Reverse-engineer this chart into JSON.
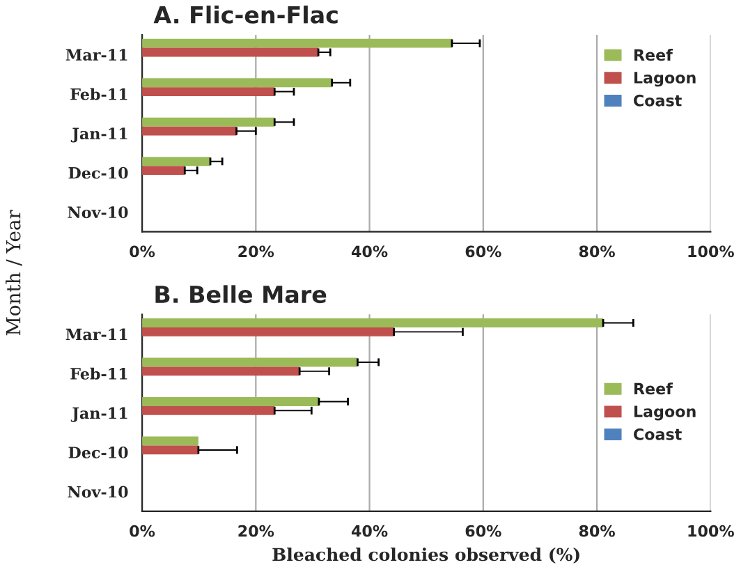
{
  "chart_data": [
    {
      "type": "bar",
      "orientation": "horizontal",
      "title": "A. Flic-en-Flac",
      "ylabel": "Month / Year",
      "categories": [
        "Mar-11",
        "Feb-11",
        "Jan-11",
        "Dec-10",
        "Nov-10"
      ],
      "series": [
        {
          "name": "Reef",
          "color": "#9bbb59",
          "values": [
            54.5,
            33.4,
            23.3,
            12.0,
            0
          ],
          "errors": [
            [
              54.5,
              59.4
            ],
            [
              33.4,
              36.6
            ],
            [
              23.3,
              26.7
            ],
            [
              12.0,
              14.1
            ],
            null
          ]
        },
        {
          "name": "Lagoon",
          "color": "#c0504d",
          "values": [
            31.0,
            23.3,
            16.6,
            7.5,
            0
          ],
          "errors": [
            [
              31.0,
              33.1
            ],
            [
              23.3,
              26.7
            ],
            [
              16.6,
              20.0
            ],
            [
              7.5,
              9.7
            ],
            null
          ]
        },
        {
          "name": "Coast",
          "color": "#4f81bd",
          "values": [
            0,
            0,
            0,
            0,
            0
          ]
        }
      ],
      "xlim": [
        0,
        100
      ],
      "xticks": [
        {
          "value": 0,
          "label": "0%"
        },
        {
          "value": 20,
          "label": "20%"
        },
        {
          "value": 40,
          "label": "40%"
        },
        {
          "value": 60,
          "label": "60%"
        },
        {
          "value": 80,
          "label": "80%"
        },
        {
          "value": 100,
          "label": "100%"
        }
      ],
      "grid": "x",
      "legend": "top right"
    },
    {
      "type": "bar",
      "orientation": "horizontal",
      "title": "B. Belle Mare",
      "xlabel": "Bleached colonies observed (%)",
      "categories": [
        "Mar-11",
        "Feb-11",
        "Jan-11",
        "Dec-10",
        "Nov-10"
      ],
      "series": [
        {
          "name": "Reef",
          "color": "#9bbb59",
          "values": [
            81.1,
            37.9,
            31.1,
            9.9,
            0
          ],
          "errors": [
            [
              81.1,
              86.4
            ],
            [
              37.9,
              41.6
            ],
            [
              31.1,
              36.2
            ],
            null,
            null
          ]
        },
        {
          "name": "Lagoon",
          "color": "#c0504d",
          "values": [
            44.3,
            27.7,
            23.3,
            9.9,
            0
          ],
          "errors": [
            [
              44.3,
              56.4
            ],
            [
              27.7,
              32.9
            ],
            [
              23.3,
              29.8
            ],
            [
              9.9,
              16.7
            ],
            null
          ]
        },
        {
          "name": "Coast",
          "color": "#4f81bd",
          "values": [
            0,
            0,
            0,
            0,
            0
          ]
        }
      ],
      "xlim": [
        0,
        100
      ],
      "xticks": [
        {
          "value": 0,
          "label": "0%"
        },
        {
          "value": 20,
          "label": "20%"
        },
        {
          "value": 40,
          "label": "40%"
        },
        {
          "value": 60,
          "label": "60%"
        },
        {
          "value": 80,
          "label": "80%"
        },
        {
          "value": 100,
          "label": "100%"
        }
      ],
      "grid": "x",
      "legend": "right"
    }
  ]
}
